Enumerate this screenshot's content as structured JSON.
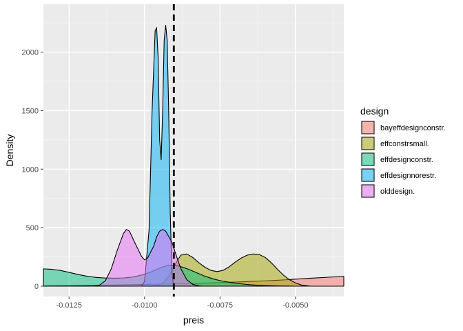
{
  "chart_data": {
    "type": "area",
    "xlabel": "preis",
    "ylabel": "Density",
    "xlim": [
      -0.01335,
      -0.0034
    ],
    "ylim": [
      0,
      2280
    ],
    "x_ticks": [
      -0.0125,
      -0.01,
      -0.0075,
      -0.005
    ],
    "x_tick_labels": [
      "-0.0125",
      "-0.0100",
      "-0.0075",
      "-0.0050"
    ],
    "y_ticks": [
      0,
      500,
      1000,
      1500,
      2000
    ],
    "y_tick_labels": [
      "0",
      "500",
      "1000",
      "1500",
      "2000"
    ],
    "grid": true,
    "legend": {
      "title": "design",
      "position": "right",
      "entries": [
        "bayeffdesignconstr.",
        "effconstrsmall.",
        "effdesignconstr.",
        "effdesignnorestr.",
        "olddesign."
      ]
    },
    "vline": {
      "x": -0.00903,
      "style": "dashed"
    },
    "series": [
      {
        "name": "bayeffdesignconstr.",
        "color": "#F8766D",
        "points": [
          [
            -0.01335,
            2
          ],
          [
            -0.0125,
            4
          ],
          [
            -0.0115,
            8
          ],
          [
            -0.0105,
            12
          ],
          [
            -0.0095,
            18
          ],
          [
            -0.0085,
            24
          ],
          [
            -0.0075,
            31
          ],
          [
            -0.0065,
            40
          ],
          [
            -0.0055,
            52
          ],
          [
            -0.0045,
            68
          ],
          [
            -0.0038,
            78
          ],
          [
            -0.0034,
            83
          ]
        ]
      },
      {
        "name": "effconstrsmall.",
        "color": "#A3A500",
        "points": [
          [
            -0.0098,
            0
          ],
          [
            -0.0096,
            5
          ],
          [
            -0.0094,
            25
          ],
          [
            -0.0092,
            80
          ],
          [
            -0.009,
            180
          ],
          [
            -0.0088,
            265
          ],
          [
            -0.0086,
            275
          ],
          [
            -0.0084,
            245
          ],
          [
            -0.0082,
            200
          ],
          [
            -0.008,
            162
          ],
          [
            -0.0078,
            135
          ],
          [
            -0.0076,
            125
          ],
          [
            -0.0074,
            135
          ],
          [
            -0.0072,
            165
          ],
          [
            -0.007,
            205
          ],
          [
            -0.0068,
            240
          ],
          [
            -0.0066,
            265
          ],
          [
            -0.0064,
            275
          ],
          [
            -0.0062,
            270
          ],
          [
            -0.006,
            245
          ],
          [
            -0.0058,
            200
          ],
          [
            -0.0056,
            145
          ],
          [
            -0.0054,
            95
          ],
          [
            -0.0052,
            55
          ],
          [
            -0.005,
            28
          ],
          [
            -0.0048,
            10
          ],
          [
            -0.0046,
            3
          ],
          [
            -0.0045,
            0
          ]
        ]
      },
      {
        "name": "effdesignconstr.",
        "color": "#00BF7D",
        "points": [
          [
            -0.01335,
            148
          ],
          [
            -0.0131,
            145
          ],
          [
            -0.0128,
            135
          ],
          [
            -0.0125,
            118
          ],
          [
            -0.0122,
            100
          ],
          [
            -0.0119,
            85
          ],
          [
            -0.0116,
            75
          ],
          [
            -0.0113,
            70
          ],
          [
            -0.011,
            68
          ],
          [
            -0.0107,
            70
          ],
          [
            -0.0104,
            78
          ],
          [
            -0.0101,
            95
          ],
          [
            -0.0098,
            120
          ],
          [
            -0.0095,
            155
          ],
          [
            -0.0092,
            180
          ],
          [
            -0.0089,
            175
          ],
          [
            -0.0086,
            150
          ],
          [
            -0.0083,
            118
          ],
          [
            -0.008,
            85
          ],
          [
            -0.0077,
            60
          ],
          [
            -0.0074,
            42
          ],
          [
            -0.0071,
            30
          ],
          [
            -0.0068,
            20
          ],
          [
            -0.0065,
            12
          ],
          [
            -0.0062,
            7
          ],
          [
            -0.0059,
            4
          ],
          [
            -0.0056,
            2
          ],
          [
            -0.0053,
            1
          ],
          [
            -0.005,
            0
          ]
        ]
      },
      {
        "name": "effdesignnorestr.",
        "color": "#00B0F6",
        "points": [
          [
            -0.0101,
            0
          ],
          [
            -0.01,
            40
          ],
          [
            -0.00985,
            480
          ],
          [
            -0.00975,
            1500
          ],
          [
            -0.00965,
            2180
          ],
          [
            -0.0096,
            2210
          ],
          [
            -0.00955,
            1950
          ],
          [
            -0.0095,
            1250
          ],
          [
            -0.00945,
            1080
          ],
          [
            -0.0094,
            1500
          ],
          [
            -0.00935,
            2100
          ],
          [
            -0.0093,
            2230
          ],
          [
            -0.00925,
            2100
          ],
          [
            -0.0092,
            1500
          ],
          [
            -0.00915,
            650
          ],
          [
            -0.0091,
            150
          ],
          [
            -0.00905,
            20
          ],
          [
            -0.009,
            0
          ]
        ]
      },
      {
        "name": "olddesign.",
        "color": "#E76BF3",
        "points": [
          [
            -0.0117,
            0
          ],
          [
            -0.0115,
            8
          ],
          [
            -0.0113,
            45
          ],
          [
            -0.0111,
            150
          ],
          [
            -0.0109,
            310
          ],
          [
            -0.0107,
            450
          ],
          [
            -0.0106,
            485
          ],
          [
            -0.0105,
            470
          ],
          [
            -0.0103,
            360
          ],
          [
            -0.0101,
            255
          ],
          [
            -0.01,
            225
          ],
          [
            -0.0099,
            240
          ],
          [
            -0.0097,
            340
          ],
          [
            -0.0096,
            420
          ],
          [
            -0.0095,
            470
          ],
          [
            -0.0094,
            485
          ],
          [
            -0.0093,
            470
          ],
          [
            -0.0091,
            380
          ],
          [
            -0.009,
            300
          ],
          [
            -0.0088,
            150
          ],
          [
            -0.0086,
            55
          ],
          [
            -0.0084,
            15
          ],
          [
            -0.0082,
            3
          ],
          [
            -0.0081,
            0
          ]
        ]
      }
    ]
  }
}
